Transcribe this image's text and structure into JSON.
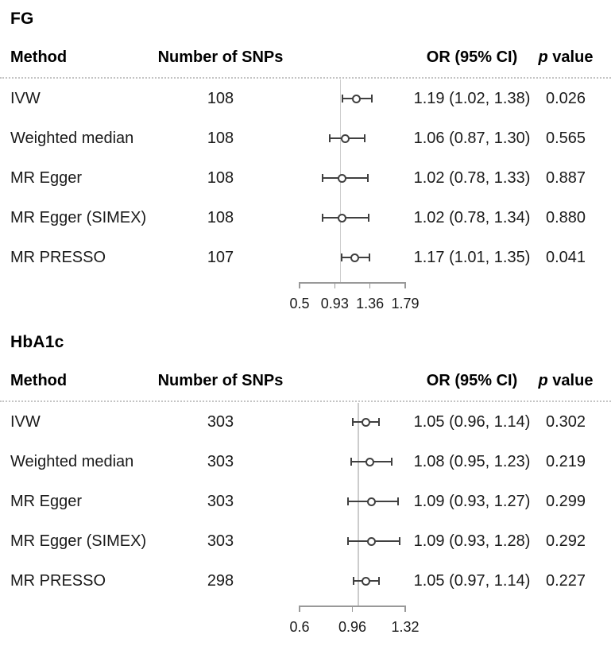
{
  "colors": {
    "ci_line": "#404040",
    "marker_stroke": "#404040",
    "marker_fill": "#ffffff",
    "ref_line": "#cccccc",
    "axis_line": "#999999",
    "separator": "#c4c4c4",
    "text": "#1a1a1a"
  },
  "header": {
    "method": "Method",
    "snps": "Number of SNPs",
    "or_ci": "OR (95% CI)",
    "p_italic": "p",
    "p_rest": " value"
  },
  "chart_data": [
    {
      "type": "forest",
      "title": "FG",
      "xlabel": "",
      "xlim": [
        0.5,
        1.79
      ],
      "xticks": [
        "0.5",
        "0.93",
        "1.36",
        "1.79"
      ],
      "ref_line": 1.0,
      "rows": [
        {
          "method": "IVW",
          "n_snps": "108",
          "or": 1.19,
          "ci_low": 1.02,
          "ci_high": 1.38,
          "or_ci_label": "1.19 (1.02, 1.38)",
          "p_value": "0.026"
        },
        {
          "method": "Weighted median",
          "n_snps": "108",
          "or": 1.06,
          "ci_low": 0.87,
          "ci_high": 1.3,
          "or_ci_label": "1.06 (0.87, 1.30)",
          "p_value": "0.565"
        },
        {
          "method": "MR Egger",
          "n_snps": "108",
          "or": 1.02,
          "ci_low": 0.78,
          "ci_high": 1.33,
          "or_ci_label": "1.02 (0.78, 1.33)",
          "p_value": "0.887"
        },
        {
          "method": "MR Egger (SIMEX)",
          "n_snps": "108",
          "or": 1.02,
          "ci_low": 0.78,
          "ci_high": 1.34,
          "or_ci_label": "1.02 (0.78, 1.34)",
          "p_value": "0.880"
        },
        {
          "method": "MR PRESSO",
          "n_snps": "107",
          "or": 1.17,
          "ci_low": 1.01,
          "ci_high": 1.35,
          "or_ci_label": "1.17 (1.01, 1.35)",
          "p_value": "0.041"
        }
      ]
    },
    {
      "type": "forest",
      "title": "HbA1c",
      "xlabel": "",
      "xlim": [
        0.6,
        1.32
      ],
      "xticks": [
        "0.6",
        "0.96",
        "1.32"
      ],
      "ref_line": 1.0,
      "rows": [
        {
          "method": "IVW",
          "n_snps": "303",
          "or": 1.05,
          "ci_low": 0.96,
          "ci_high": 1.14,
          "or_ci_label": "1.05 (0.96, 1.14)",
          "p_value": "0.302"
        },
        {
          "method": "Weighted median",
          "n_snps": "303",
          "or": 1.08,
          "ci_low": 0.95,
          "ci_high": 1.23,
          "or_ci_label": "1.08 (0.95, 1.23)",
          "p_value": "0.219"
        },
        {
          "method": "MR Egger",
          "n_snps": "303",
          "or": 1.09,
          "ci_low": 0.93,
          "ci_high": 1.27,
          "or_ci_label": "1.09 (0.93, 1.27)",
          "p_value": "0.299"
        },
        {
          "method": "MR Egger (SIMEX)",
          "n_snps": "303",
          "or": 1.09,
          "ci_low": 0.93,
          "ci_high": 1.28,
          "or_ci_label": "1.09 (0.93, 1.28)",
          "p_value": "0.292"
        },
        {
          "method": "MR PRESSO",
          "n_snps": "298",
          "or": 1.05,
          "ci_low": 0.97,
          "ci_high": 1.14,
          "or_ci_label": "1.05 (0.97, 1.14)",
          "p_value": "0.227"
        }
      ]
    }
  ]
}
